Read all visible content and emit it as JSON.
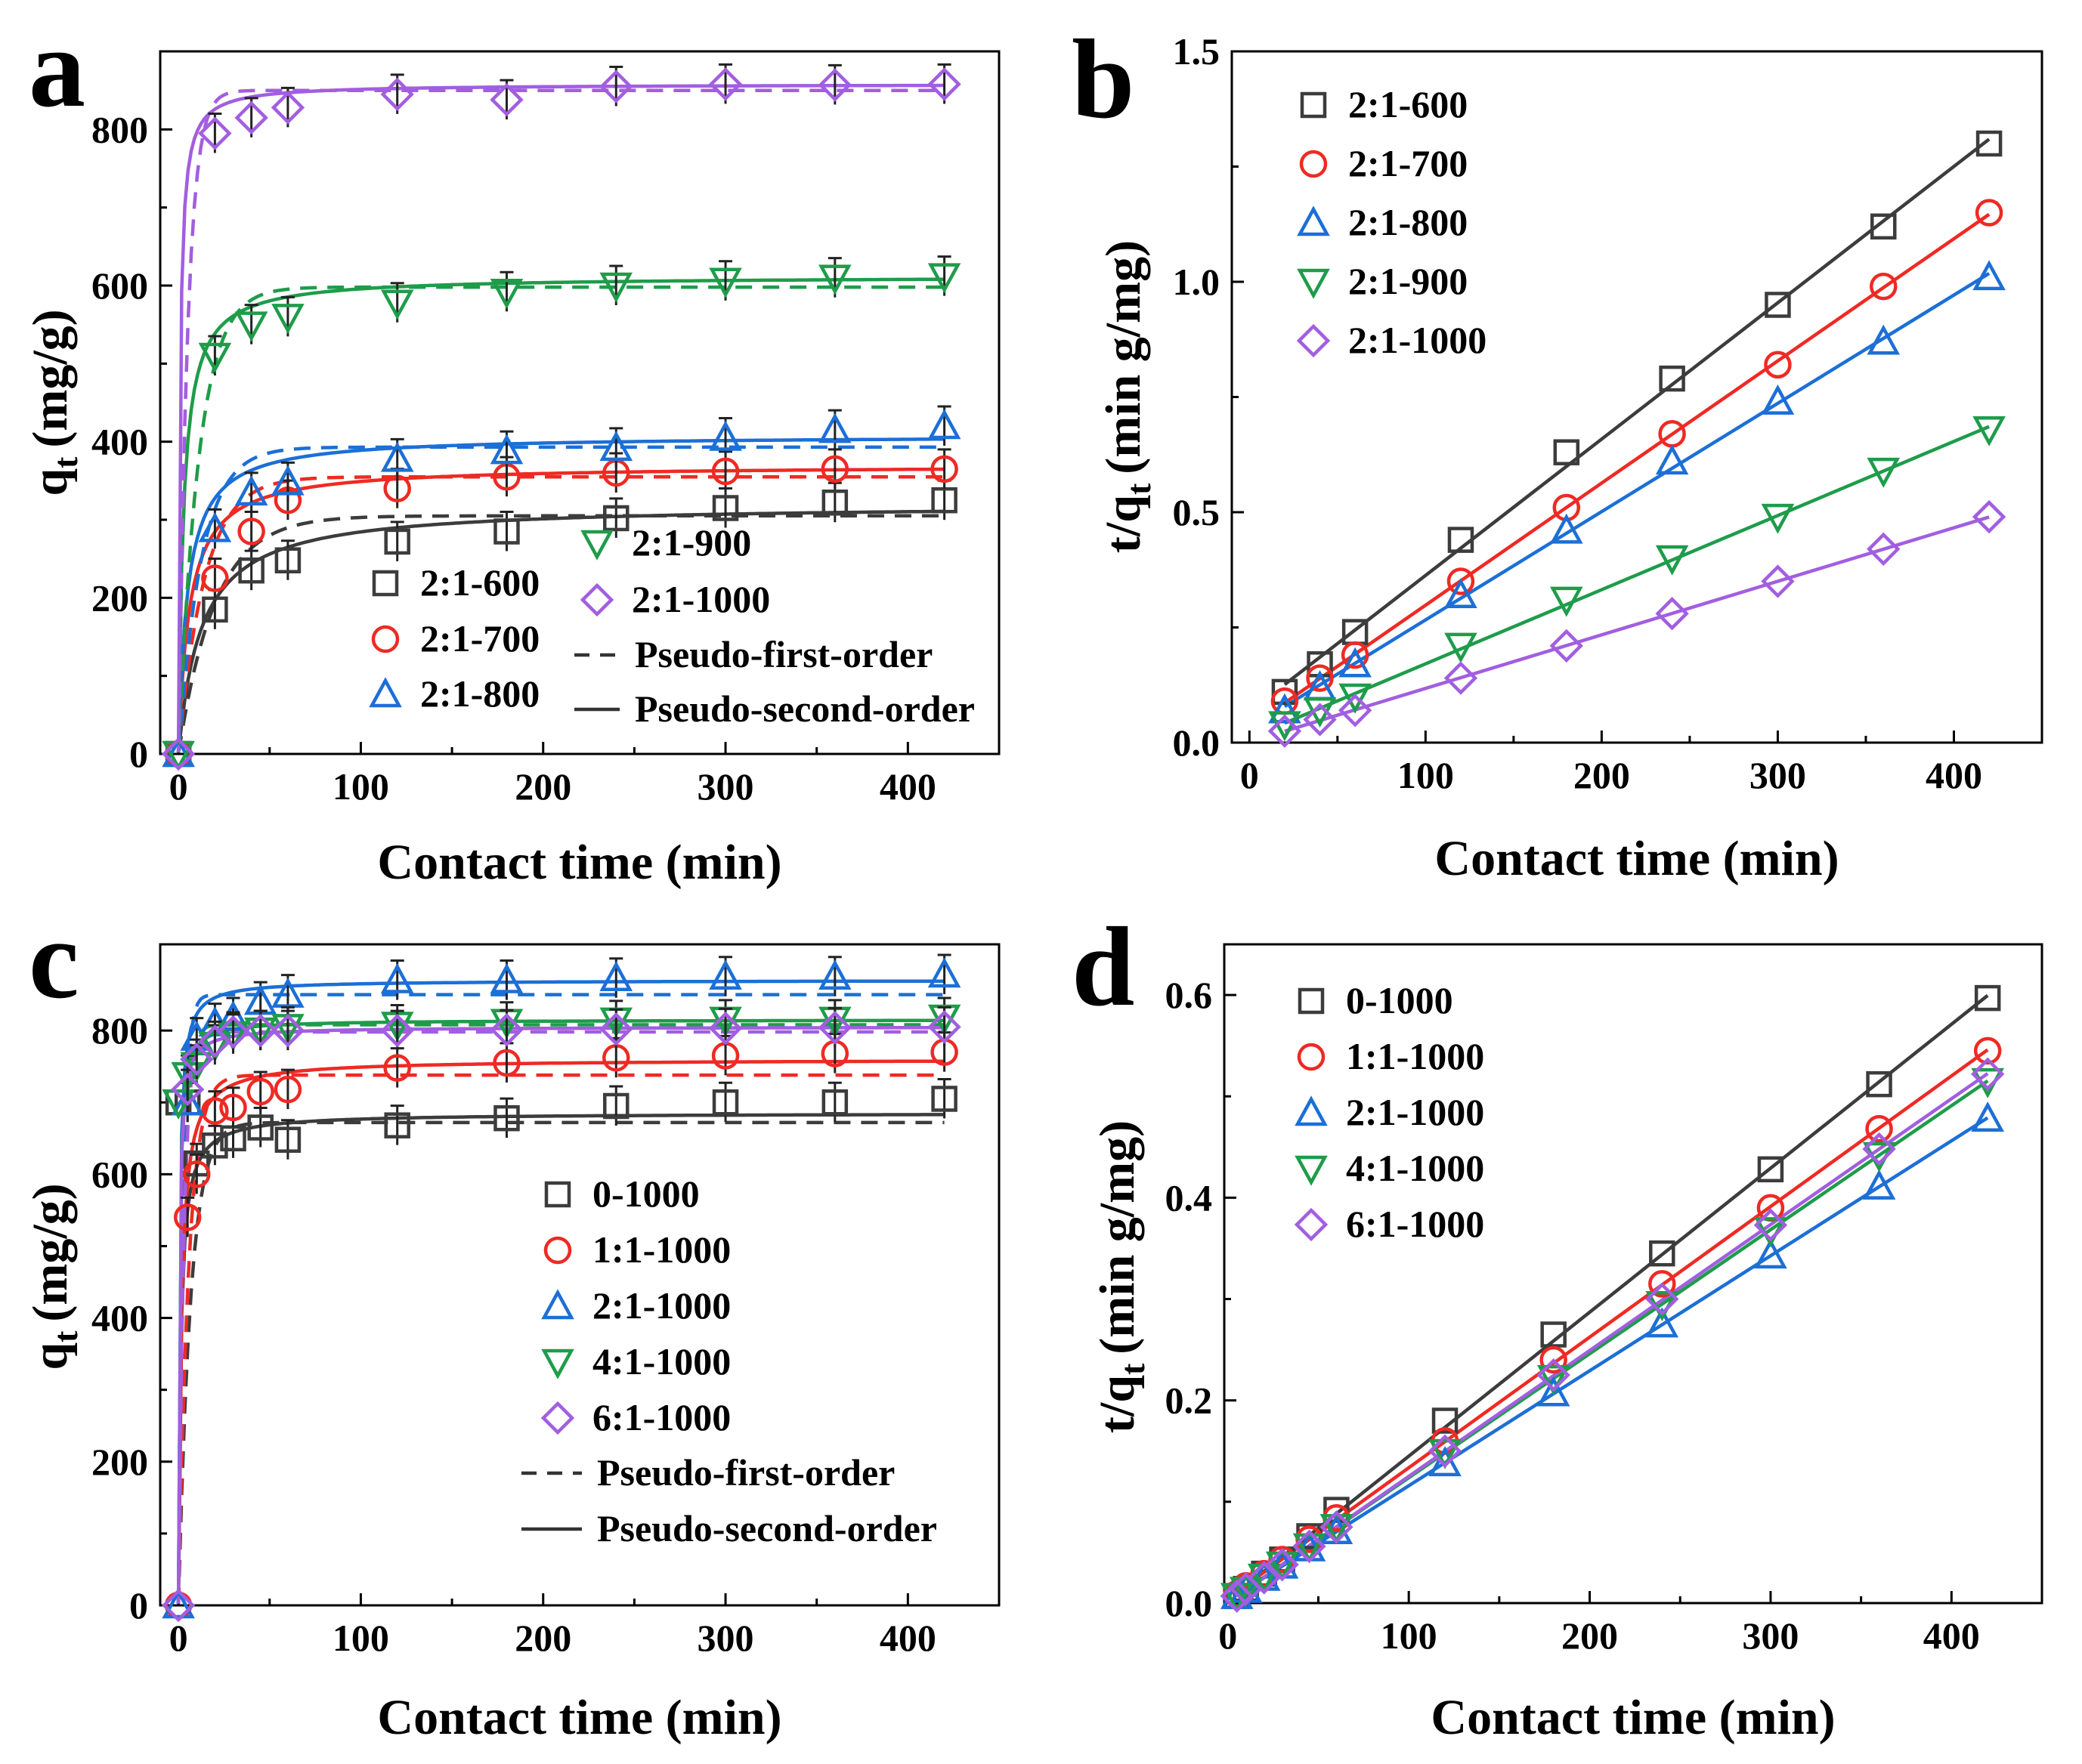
{
  "colors": {
    "black": "#3c3c3c",
    "red": "#ee2a24",
    "blue": "#1c6fd6",
    "green": "#1e9c4a",
    "purple": "#a25ee0"
  },
  "chart_data": [
    {
      "panel": "a",
      "type": "scatter",
      "xlabel": "Contact time (min)",
      "ylabel": "q",
      "ylabel_sub": "t",
      "ylabel_unit": "(mg/g)",
      "xlim": [
        -10,
        450
      ],
      "ylim": [
        0,
        900
      ],
      "xticks": [
        0,
        100,
        200,
        300,
        400
      ],
      "yticks": [
        0,
        200,
        400,
        600,
        800
      ],
      "ytick_labels": [
        "0",
        "200",
        "400",
        "600",
        "800"
      ],
      "x": [
        0,
        20,
        40,
        60,
        120,
        180,
        240,
        300,
        360,
        420
      ],
      "series": [
        {
          "name": "2:1-600",
          "marker": "square",
          "color": "black",
          "values": [
            0,
            185,
            235,
            248,
            272,
            285,
            302,
            315,
            322,
            325
          ],
          "pfo": {
            "qe": 305,
            "k": 0.05
          },
          "pso": {
            "qe": 320,
            "k": 0.00025
          }
        },
        {
          "name": "2:1-700",
          "marker": "circle",
          "color": "red",
          "values": [
            0,
            225,
            285,
            325,
            340,
            355,
            360,
            362,
            365,
            365
          ],
          "pfo": {
            "qe": 355,
            "k": 0.07
          },
          "pso": {
            "qe": 370,
            "k": 0.00045
          }
        },
        {
          "name": "2:1-800",
          "marker": "triangle-up",
          "color": "blue",
          "values": [
            0,
            288,
            335,
            348,
            378,
            388,
            392,
            405,
            415,
            420
          ],
          "pfo": {
            "qe": 393,
            "k": 0.08
          },
          "pso": {
            "qe": 408,
            "k": 0.0005
          }
        },
        {
          "name": "2:1-900",
          "marker": "triangle-down",
          "color": "green",
          "values": [
            0,
            510,
            550,
            560,
            578,
            592,
            600,
            606,
            610,
            612
          ],
          "pfo": {
            "qe": 598,
            "k": 0.09
          },
          "pso": {
            "qe": 612,
            "k": 0.0006
          }
        },
        {
          "name": "2:1-1000",
          "marker": "diamond",
          "color": "purple",
          "values": [
            0,
            795,
            815,
            828,
            845,
            838,
            855,
            858,
            857,
            858
          ],
          "pfo": {
            "qe": 850,
            "k": 0.2
          },
          "pso": {
            "qe": 858,
            "k": 0.0015
          }
        }
      ],
      "legend_entries": [
        {
          "label": "2:1-600",
          "marker": "square",
          "color": "black"
        },
        {
          "label": "2:1-700",
          "marker": "circle",
          "color": "red"
        },
        {
          "label": "2:1-800",
          "marker": "triangle-up",
          "color": "blue"
        },
        {
          "label": "2:1-900",
          "marker": "triangle-down",
          "color": "green"
        },
        {
          "label": "2:1-1000",
          "marker": "diamond",
          "color": "purple"
        },
        {
          "label": "Pseudo-first-order",
          "line": "dashed"
        },
        {
          "label": "Pseudo-second-order",
          "line": "solid"
        }
      ]
    },
    {
      "panel": "b",
      "type": "scatter",
      "xlabel": "Contact time (min)",
      "ylabel": "t/q",
      "ylabel_sub": "t",
      "ylabel_unit": "(min g/mg)",
      "xlim": [
        -10,
        450
      ],
      "ylim": [
        0,
        1.5
      ],
      "xticks": [
        0,
        100,
        200,
        300,
        400
      ],
      "yticks": [
        0,
        0.5,
        1.0,
        1.5
      ],
      "ytick_labels": [
        "0.0",
        "0.5",
        "1.0",
        "1.5"
      ],
      "x": [
        20,
        40,
        60,
        120,
        180,
        240,
        300,
        360,
        420
      ],
      "series": [
        {
          "name": "2:1-600",
          "marker": "square",
          "color": "black",
          "values": [
            0.11,
            0.17,
            0.24,
            0.44,
            0.63,
            0.79,
            0.95,
            1.12,
            1.3
          ]
        },
        {
          "name": "2:1-700",
          "marker": "circle",
          "color": "red",
          "values": [
            0.09,
            0.14,
            0.19,
            0.35,
            0.51,
            0.67,
            0.82,
            0.99,
            1.15
          ]
        },
        {
          "name": "2:1-800",
          "marker": "triangle-up",
          "color": "blue",
          "values": [
            0.07,
            0.12,
            0.17,
            0.32,
            0.46,
            0.61,
            0.74,
            0.87,
            1.01
          ]
        },
        {
          "name": "2:1-900",
          "marker": "triangle-down",
          "color": "green",
          "values": [
            0.04,
            0.07,
            0.1,
            0.21,
            0.31,
            0.4,
            0.49,
            0.59,
            0.68
          ]
        },
        {
          "name": "2:1-1000",
          "marker": "diamond",
          "color": "purple",
          "values": [
            0.025,
            0.05,
            0.07,
            0.14,
            0.21,
            0.28,
            0.35,
            0.42,
            0.49
          ]
        }
      ],
      "legend_entries": [
        {
          "label": "2:1-600",
          "marker": "square",
          "color": "black"
        },
        {
          "label": "2:1-700",
          "marker": "circle",
          "color": "red"
        },
        {
          "label": "2:1-800",
          "marker": "triangle-up",
          "color": "blue"
        },
        {
          "label": "2:1-900",
          "marker": "triangle-down",
          "color": "green"
        },
        {
          "label": "2:1-1000",
          "marker": "diamond",
          "color": "purple"
        }
      ]
    },
    {
      "panel": "c",
      "type": "scatter",
      "xlabel": "Contact time (min)",
      "ylabel": "q",
      "ylabel_sub": "t",
      "ylabel_unit": "(mg/g)",
      "xlim": [
        -10,
        450
      ],
      "ylim": [
        0,
        920
      ],
      "xticks": [
        0,
        100,
        200,
        300,
        400
      ],
      "yticks": [
        0,
        200,
        400,
        600,
        800
      ],
      "ytick_labels": [
        "0",
        "200",
        "400",
        "600",
        "800"
      ],
      "x": [
        0,
        5,
        10,
        20,
        30,
        45,
        60,
        120,
        180,
        240,
        300,
        360,
        420
      ],
      "series": [
        {
          "name": "0-1000",
          "marker": "square",
          "color": "black",
          "values": [
            700,
            700,
            615,
            640,
            650,
            665,
            648,
            668,
            678,
            695,
            700,
            700,
            705
          ],
          "pfo": {
            "qe": 672,
            "k": 0.15
          },
          "pso": {
            "qe": 685,
            "k": 0.0012
          }
        },
        {
          "name": "1:1-1000",
          "marker": "circle",
          "color": "red",
          "values": [
            0,
            540,
            600,
            688,
            693,
            715,
            718,
            748,
            755,
            762,
            765,
            768,
            770
          ],
          "pfo": {
            "qe": 738,
            "k": 0.18
          },
          "pso": {
            "qe": 760,
            "k": 0.0009
          }
        },
        {
          "name": "2:1-1000",
          "marker": "triangle-up",
          "color": "blue",
          "values": [
            0,
            700,
            790,
            810,
            818,
            840,
            850,
            870,
            870,
            873,
            875,
            875,
            878
          ],
          "pfo": {
            "qe": 850,
            "k": 0.4
          },
          "pso": {
            "qe": 870,
            "k": 0.002
          }
        },
        {
          "name": "4:1-1000",
          "marker": "triangle-down",
          "color": "green",
          "values": [
            700,
            738,
            752,
            780,
            795,
            800,
            805,
            808,
            812,
            814,
            815,
            815,
            818
          ],
          "pfo": {
            "qe": 808,
            "k": 0.35
          },
          "pso": {
            "qe": 815,
            "k": 0.0025
          }
        },
        {
          "name": "6:1-1000",
          "marker": "diamond",
          "color": "purple",
          "values": [
            0,
            718,
            760,
            785,
            798,
            800,
            800,
            800,
            801,
            802,
            803,
            804,
            805
          ],
          "pfo": {
            "qe": 798,
            "k": 0.35
          },
          "pso": {
            "qe": 805,
            "k": 0.0025
          }
        }
      ],
      "legend_entries": [
        {
          "label": "0-1000",
          "marker": "square",
          "color": "black"
        },
        {
          "label": "1:1-1000",
          "marker": "circle",
          "color": "red"
        },
        {
          "label": "2:1-1000",
          "marker": "triangle-up",
          "color": "blue"
        },
        {
          "label": "4:1-1000",
          "marker": "triangle-down",
          "color": "green"
        },
        {
          "label": "6:1-1000",
          "marker": "diamond",
          "color": "purple"
        },
        {
          "label": "Pseudo-first-order",
          "line": "dashed"
        },
        {
          "label": "Pseudo-second-order",
          "line": "solid"
        }
      ]
    },
    {
      "panel": "d",
      "type": "scatter",
      "xlabel": "Contact time (min)",
      "ylabel": "t/q",
      "ylabel_sub": "t",
      "ylabel_unit": "(min g/mg)",
      "xlim": [
        -2,
        450
      ],
      "ylim": [
        0,
        0.65
      ],
      "xticks": [
        0,
        100,
        200,
        300,
        400
      ],
      "yticks": [
        0,
        0.2,
        0.4,
        0.6
      ],
      "ytick_labels": [
        "0.0",
        "0.2",
        "0.4",
        "0.6"
      ],
      "x": [
        5,
        10,
        20,
        30,
        45,
        60,
        120,
        180,
        240,
        300,
        360,
        420
      ],
      "series": [
        {
          "name": "0-1000",
          "marker": "square",
          "color": "black",
          "values": [
            0.007,
            0.014,
            0.029,
            0.043,
            0.066,
            0.092,
            0.18,
            0.265,
            0.345,
            0.428,
            0.512,
            0.597
          ]
        },
        {
          "name": "1:1-1000",
          "marker": "circle",
          "color": "red",
          "values": [
            0.009,
            0.017,
            0.029,
            0.043,
            0.063,
            0.084,
            0.16,
            0.24,
            0.315,
            0.39,
            0.468,
            0.545
          ]
        },
        {
          "name": "2:1-1000",
          "marker": "triangle-up",
          "color": "blue",
          "values": [
            0.007,
            0.013,
            0.025,
            0.037,
            0.054,
            0.071,
            0.138,
            0.207,
            0.275,
            0.343,
            0.411,
            0.478
          ]
        },
        {
          "name": "4:1-1000",
          "marker": "triangle-down",
          "color": "green",
          "values": [
            0.007,
            0.013,
            0.026,
            0.038,
            0.056,
            0.075,
            0.149,
            0.222,
            0.295,
            0.368,
            0.442,
            0.515
          ]
        },
        {
          "name": "6:1-1000",
          "marker": "diamond",
          "color": "purple",
          "values": [
            0.007,
            0.014,
            0.025,
            0.038,
            0.056,
            0.075,
            0.15,
            0.225,
            0.3,
            0.373,
            0.448,
            0.522
          ]
        }
      ],
      "legend_entries": [
        {
          "label": "0-1000",
          "marker": "square",
          "color": "black"
        },
        {
          "label": "1:1-1000",
          "marker": "circle",
          "color": "red"
        },
        {
          "label": "2:1-1000",
          "marker": "triangle-up",
          "color": "blue"
        },
        {
          "label": "4:1-1000",
          "marker": "triangle-down",
          "color": "green"
        },
        {
          "label": "6:1-1000",
          "marker": "diamond",
          "color": "purple"
        }
      ]
    }
  ]
}
